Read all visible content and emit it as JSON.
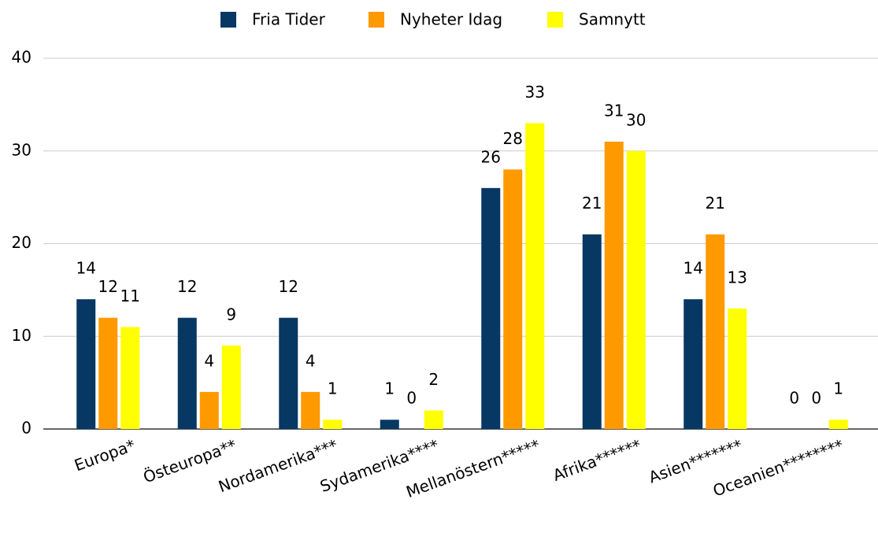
{
  "chart_data": {
    "type": "bar",
    "categories": [
      "Europa*",
      "Östeuropa**",
      "Nordamerika***",
      "Sydamerika****",
      "Mellanöstern*****",
      "Afrika******",
      "Asien*******",
      "Oceanien********"
    ],
    "series": [
      {
        "name": "Fria Tider",
        "color": "#073763",
        "values": [
          14,
          12,
          12,
          1,
          26,
          21,
          14,
          0
        ]
      },
      {
        "name": "Nyheter Idag",
        "color": "#ff9900",
        "values": [
          12,
          4,
          4,
          0,
          28,
          31,
          21,
          0
        ]
      },
      {
        "name": "Samnytt",
        "color": "#ffff00",
        "values": [
          11,
          9,
          1,
          2,
          33,
          30,
          13,
          1
        ]
      }
    ],
    "ylim": [
      0,
      40
    ],
    "yticks": [
      0,
      10,
      20,
      30,
      40
    ],
    "grid": true,
    "legend": "top"
  }
}
